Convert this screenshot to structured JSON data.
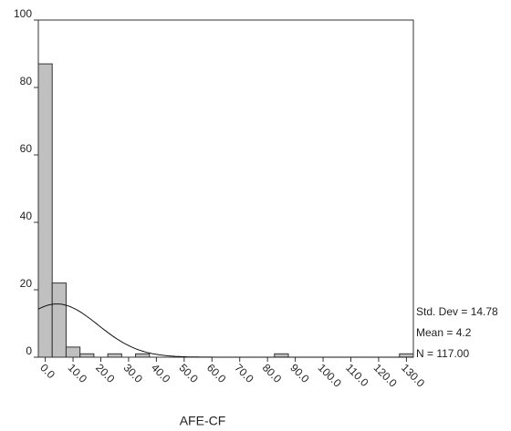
{
  "chart_data": {
    "type": "histogram",
    "x_label": "AFE-CF",
    "bins": [
      -2.5,
      2.5,
      7.5,
      12.5,
      17.5,
      22.5,
      27.5,
      32.5,
      37.5,
      42.5,
      47.5,
      52.5,
      57.5,
      62.5,
      67.5,
      72.5,
      77.5,
      82.5,
      87.5,
      92.5,
      97.5,
      102.5,
      107.5,
      112.5,
      117.5,
      122.5,
      127.5,
      132.5
    ],
    "values": [
      87,
      22,
      3,
      1,
      0,
      1,
      0,
      1,
      0,
      0,
      0,
      0,
      0,
      0,
      0,
      0,
      0,
      1,
      0,
      0,
      0,
      0,
      0,
      0,
      0,
      0,
      1
    ],
    "color": "#c0c0c0",
    "xlim": [
      -2.5,
      132.5
    ],
    "xticks": [
      {
        "value": 0,
        "label": "0.0"
      },
      {
        "value": 10,
        "label": "10.0"
      },
      {
        "value": 20,
        "label": "20.0"
      },
      {
        "value": 30,
        "label": "30.0"
      },
      {
        "value": 40,
        "label": "40.0"
      },
      {
        "value": 50,
        "label": "50.0"
      },
      {
        "value": 60,
        "label": "60.0"
      },
      {
        "value": 70,
        "label": "70.0"
      },
      {
        "value": 80,
        "label": "80.0"
      },
      {
        "value": 90,
        "label": "90.0"
      },
      {
        "value": 100,
        "label": "100.0"
      },
      {
        "value": 110,
        "label": "110.0"
      },
      {
        "value": 120,
        "label": "120.0"
      },
      {
        "value": 130,
        "label": "130.0"
      }
    ],
    "ylim": [
      0,
      100
    ],
    "yticks": [
      0,
      20,
      40,
      60,
      80,
      100
    ],
    "stats": [
      {
        "value": 14.78,
        "label": "Std. Dev = 14.78"
      },
      {
        "value": 4.2,
        "label": "Mean = 4.2"
      },
      {
        "value": 117,
        "label": "N = 117.00"
      }
    ]
  }
}
